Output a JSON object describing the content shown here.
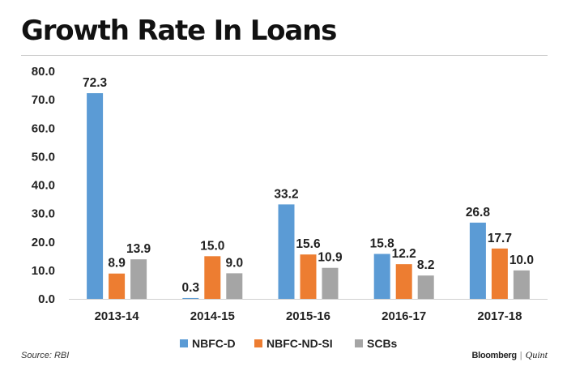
{
  "title": "Growth Rate In Loans",
  "source": "Source: RBI",
  "logo": {
    "brand": "Bloomberg",
    "separator": "|",
    "suffix": "Quint"
  },
  "chart_data": {
    "type": "bar",
    "title": "Growth Rate In Loans",
    "categories": [
      "2013-14",
      "2014-15",
      "2015-16",
      "2016-17",
      "2017-18"
    ],
    "series": [
      {
        "name": "NBFC-D",
        "color": "#5b9bd5",
        "values": [
          72.3,
          0.3,
          33.2,
          15.8,
          26.8
        ],
        "labels": [
          "72.3",
          "0.3",
          "33.2",
          "15.8",
          "26.8"
        ]
      },
      {
        "name": "NBFC-ND-SI",
        "color": "#ed7d31",
        "values": [
          8.9,
          15.0,
          15.6,
          12.2,
          17.7
        ],
        "labels": [
          "8.9",
          "15.0",
          "15.6",
          "12.2",
          "17.7"
        ]
      },
      {
        "name": "SCBs",
        "color": "#a5a5a5",
        "values": [
          13.9,
          9.0,
          10.9,
          8.2,
          10.0
        ],
        "labels": [
          "13.9",
          "9.0",
          "10.9",
          "8.2",
          "10.0"
        ]
      }
    ],
    "yticks": [
      "0.0",
      "10.0",
      "20.0",
      "30.0",
      "40.0",
      "50.0",
      "60.0",
      "70.0",
      "80.0"
    ],
    "ylim": [
      0,
      80
    ],
    "xlabel": "",
    "ylabel": "",
    "grid": false,
    "legend_position": "bottom"
  }
}
